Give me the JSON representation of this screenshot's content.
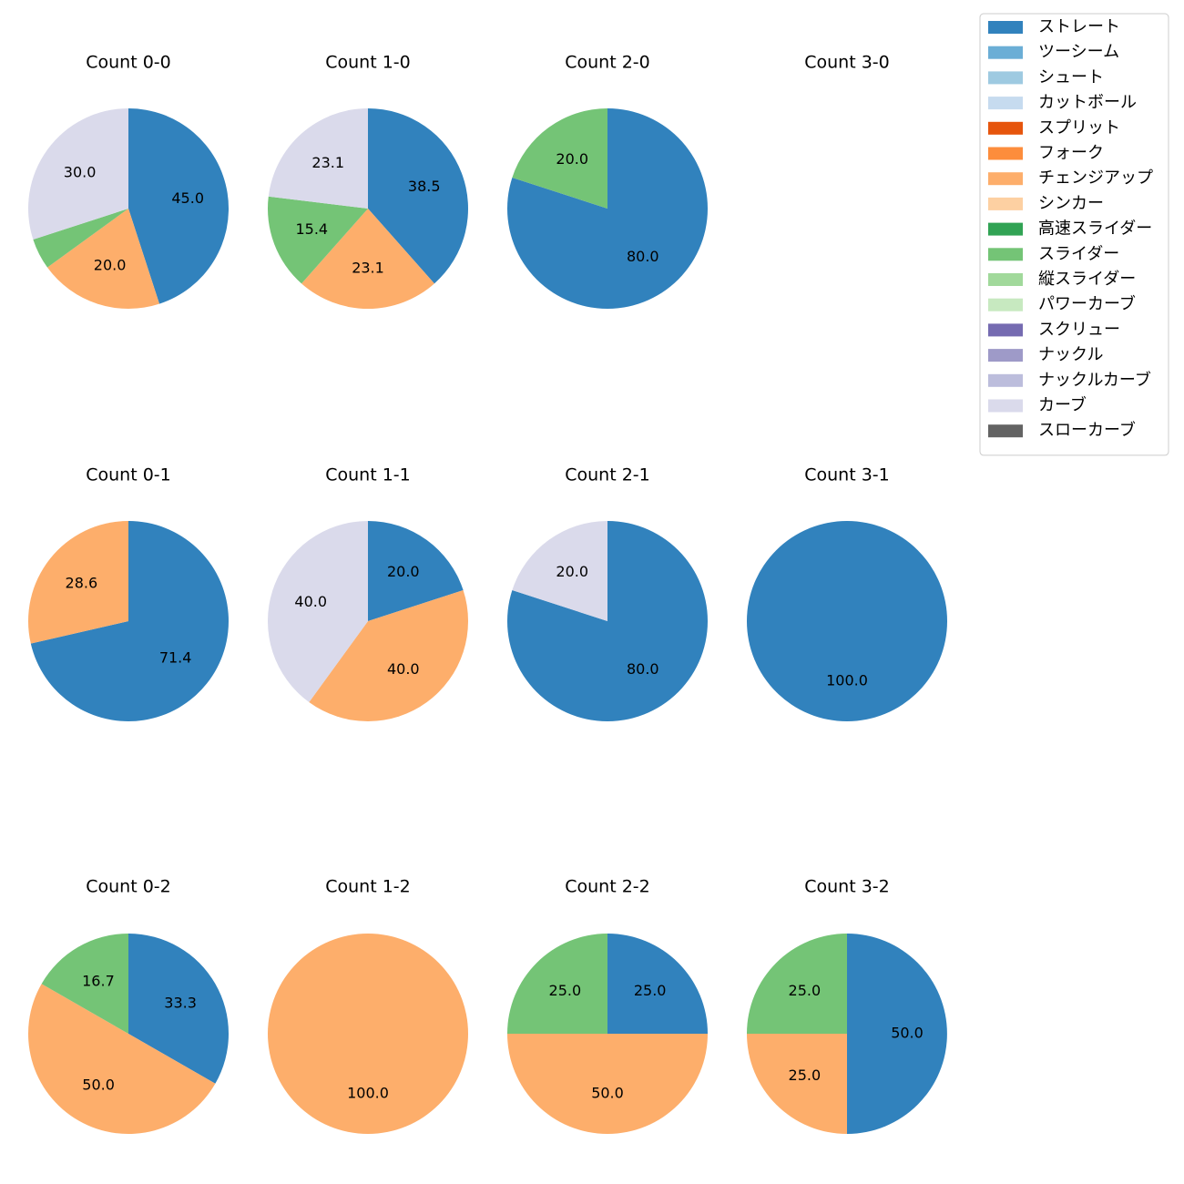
{
  "chart_data": {
    "type": "pie",
    "legend": {
      "placement": "top-right",
      "entries": [
        {
          "name": "ストレート",
          "color": "#3182bd"
        },
        {
          "name": "ツーシーム",
          "color": "#6baed6"
        },
        {
          "name": "シュート",
          "color": "#9ecae1"
        },
        {
          "name": "カットボール",
          "color": "#c6dbef"
        },
        {
          "name": "スプリット",
          "color": "#e6550d"
        },
        {
          "name": "フォーク",
          "color": "#fd8d3c"
        },
        {
          "name": "チェンジアップ",
          "color": "#fdae6b"
        },
        {
          "name": "シンカー",
          "color": "#fdd0a2"
        },
        {
          "name": "高速スライダー",
          "color": "#31a354"
        },
        {
          "name": "スライダー",
          "color": "#74c476"
        },
        {
          "name": "縦スライダー",
          "color": "#a1d99b"
        },
        {
          "name": "パワーカーブ",
          "color": "#c7e9c0"
        },
        {
          "name": "スクリュー",
          "color": "#756bb1"
        },
        {
          "name": "ナックル",
          "color": "#9e9ac8"
        },
        {
          "name": "ナックルカーブ",
          "color": "#bcbddc"
        },
        {
          "name": "カーブ",
          "color": "#dadaeb"
        },
        {
          "name": "スローカーブ",
          "color": "#636363"
        }
      ]
    },
    "charts": [
      {
        "title": "Count 0-0",
        "slices": [
          {
            "pitch": "ストレート",
            "value": 45.0,
            "label": "45.0"
          },
          {
            "pitch": "チェンジアップ",
            "value": 20.0,
            "label": "20.0"
          },
          {
            "pitch": "スライダー",
            "value": 5.0,
            "label": ""
          },
          {
            "pitch": "カーブ",
            "value": 30.0,
            "label": "30.0"
          }
        ]
      },
      {
        "title": "Count 1-0",
        "slices": [
          {
            "pitch": "ストレート",
            "value": 38.5,
            "label": "38.5"
          },
          {
            "pitch": "チェンジアップ",
            "value": 23.1,
            "label": "23.1"
          },
          {
            "pitch": "スライダー",
            "value": 15.4,
            "label": "15.4"
          },
          {
            "pitch": "カーブ",
            "value": 23.1,
            "label": "23.1"
          }
        ]
      },
      {
        "title": "Count 2-0",
        "slices": [
          {
            "pitch": "ストレート",
            "value": 80.0,
            "label": "80.0"
          },
          {
            "pitch": "スライダー",
            "value": 20.0,
            "label": "20.0"
          }
        ]
      },
      {
        "title": "Count 3-0",
        "slices": []
      },
      {
        "title": "Count 0-1",
        "slices": [
          {
            "pitch": "ストレート",
            "value": 71.4,
            "label": "71.4"
          },
          {
            "pitch": "チェンジアップ",
            "value": 28.6,
            "label": "28.6"
          }
        ]
      },
      {
        "title": "Count 1-1",
        "slices": [
          {
            "pitch": "ストレート",
            "value": 20.0,
            "label": "20.0"
          },
          {
            "pitch": "チェンジアップ",
            "value": 40.0,
            "label": "40.0"
          },
          {
            "pitch": "カーブ",
            "value": 40.0,
            "label": "40.0"
          }
        ]
      },
      {
        "title": "Count 2-1",
        "slices": [
          {
            "pitch": "ストレート",
            "value": 80.0,
            "label": "80.0"
          },
          {
            "pitch": "カーブ",
            "value": 20.0,
            "label": "20.0"
          }
        ]
      },
      {
        "title": "Count 3-1",
        "slices": [
          {
            "pitch": "ストレート",
            "value": 100.0,
            "label": "100.0"
          }
        ]
      },
      {
        "title": "Count 0-2",
        "slices": [
          {
            "pitch": "ストレート",
            "value": 33.3,
            "label": "33.3"
          },
          {
            "pitch": "チェンジアップ",
            "value": 50.0,
            "label": "50.0"
          },
          {
            "pitch": "スライダー",
            "value": 16.7,
            "label": "16.7"
          }
        ]
      },
      {
        "title": "Count 1-2",
        "slices": [
          {
            "pitch": "チェンジアップ",
            "value": 100.0,
            "label": "100.0"
          }
        ]
      },
      {
        "title": "Count 2-2",
        "slices": [
          {
            "pitch": "ストレート",
            "value": 25.0,
            "label": "25.0"
          },
          {
            "pitch": "チェンジアップ",
            "value": 50.0,
            "label": "50.0"
          },
          {
            "pitch": "スライダー",
            "value": 25.0,
            "label": "25.0"
          }
        ]
      },
      {
        "title": "Count 3-2",
        "slices": [
          {
            "pitch": "ストレート",
            "value": 50.0,
            "label": "50.0"
          },
          {
            "pitch": "チェンジアップ",
            "value": 25.0,
            "label": "25.0"
          },
          {
            "pitch": "スライダー",
            "value": 25.0,
            "label": "25.0"
          }
        ]
      }
    ]
  }
}
